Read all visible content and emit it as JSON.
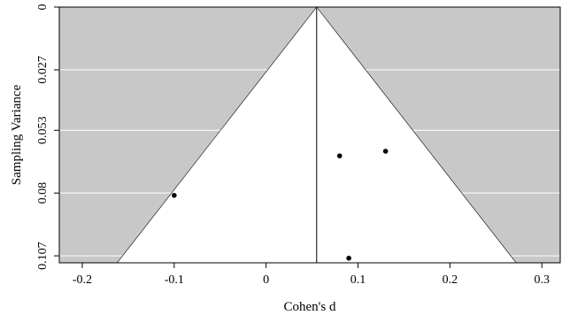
{
  "chart_data": {
    "type": "scatter",
    "subtype": "funnel-plot",
    "title": "",
    "xlabel": "Cohen's d",
    "ylabel": "Sampling Variance",
    "xlim": [
      -0.225,
      0.32
    ],
    "ylim": [
      0.11,
      0
    ],
    "x_ticks": [
      -0.2,
      -0.1,
      0,
      0.1,
      0.2,
      0.3
    ],
    "x_tick_labels": [
      "-0.2",
      "-0.1",
      "0",
      "0.1",
      "0.2",
      "0.3"
    ],
    "y_ticks": [
      0,
      0.027,
      0.053,
      0.08,
      0.107
    ],
    "y_tick_labels": [
      "0",
      "0.027",
      "0.053",
      "0.08",
      "0.107"
    ],
    "y_reversed": true,
    "center_estimate": 0.055,
    "funnel_bottom_x": [
      -0.162,
      0.272
    ],
    "funnel_bottom_y": 0.11,
    "points": [
      {
        "x": -0.1,
        "y": 0.081
      },
      {
        "x": 0.08,
        "y": 0.064
      },
      {
        "x": 0.13,
        "y": 0.062
      },
      {
        "x": 0.09,
        "y": 0.108
      }
    ],
    "background_color": "#c8c8c8",
    "funnel_color": "#ffffff",
    "gridline_color": "#ffffff",
    "point_color": "#000000",
    "grid": true
  }
}
